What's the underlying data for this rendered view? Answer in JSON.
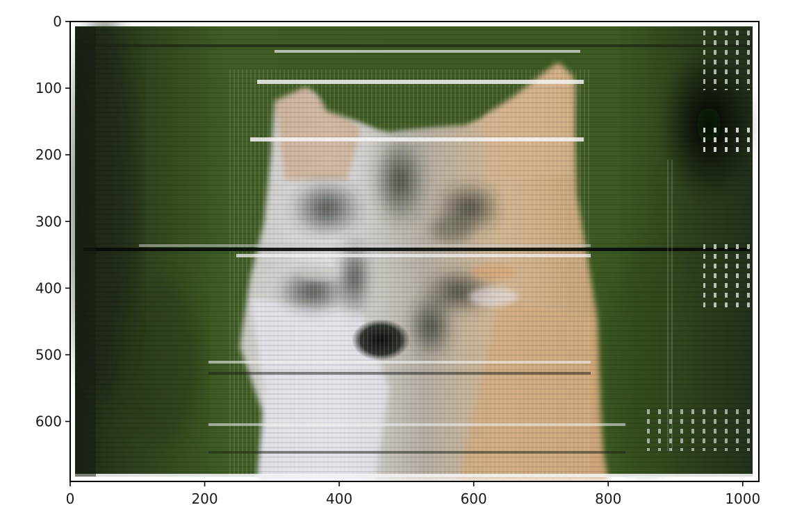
{
  "chart_data": {
    "type": "image",
    "title": "",
    "xlabel": "",
    "ylabel": "",
    "xlim": [
      0,
      1024
    ],
    "ylim": [
      690,
      0
    ],
    "y_axis_inverted": true,
    "grid": false,
    "x_ticks": [
      {
        "value": 0,
        "label": "0"
      },
      {
        "value": 200,
        "label": "200"
      },
      {
        "value": 400,
        "label": "400"
      },
      {
        "value": 600,
        "label": "600"
      },
      {
        "value": 800,
        "label": "800"
      },
      {
        "value": 1000,
        "label": "1000"
      }
    ],
    "y_ticks": [
      {
        "value": 0,
        "label": "0"
      },
      {
        "value": 100,
        "label": "100"
      },
      {
        "value": 200,
        "label": "200"
      },
      {
        "value": 300,
        "label": "300"
      },
      {
        "value": 400,
        "label": "400"
      },
      {
        "value": 500,
        "label": "500"
      },
      {
        "value": 600,
        "label": "600"
      }
    ],
    "image_content": "noisy reconstructed photo of a wolf face on a green background",
    "colors": {
      "background_green": "#3d5a22",
      "dark_green": "#1f2c14",
      "fur_white": "#e6e6ee",
      "fur_tan": "#c9a276",
      "nose": "#141814"
    }
  }
}
